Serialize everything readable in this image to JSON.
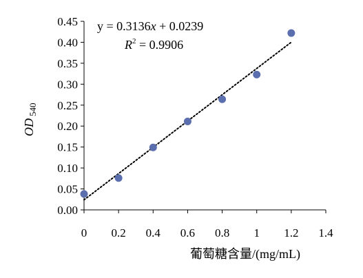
{
  "chart_data": {
    "type": "scatter",
    "title": "",
    "xlabel": "葡萄糖含量/(mg/mL)",
    "ylabel_main": "OD",
    "ylabel_sub": "540",
    "xlim": [
      0,
      1.4
    ],
    "ylim": [
      0,
      0.45
    ],
    "x_ticks": [
      "0",
      "0.2",
      "0.4",
      "0.6",
      "0.8",
      "1",
      "1.2",
      "1.4"
    ],
    "y_ticks": [
      "0.00",
      "0.05",
      "0.10",
      "0.15",
      "0.20",
      "0.25",
      "0.30",
      "0.35",
      "0.40",
      "0.45"
    ],
    "grid": false,
    "series": [
      {
        "x": [
          0,
          0.2,
          0.4,
          0.6,
          0.8,
          1.0,
          1.2
        ],
        "y": [
          0.038,
          0.076,
          0.149,
          0.211,
          0.264,
          0.323,
          0.422
        ],
        "color": "#5b6fae"
      }
    ],
    "trendline": {
      "slope": 0.3136,
      "intercept": 0.0239,
      "style": "dotted",
      "x_range": [
        0,
        1.2
      ]
    },
    "annotations": {
      "equation_prefix": "y = 0.3136",
      "equation_var": "x",
      "equation_suffix": " + 0.0239",
      "r2_var": "R",
      "r2_exp": "2",
      "r2_value": " = 0.9906"
    }
  }
}
